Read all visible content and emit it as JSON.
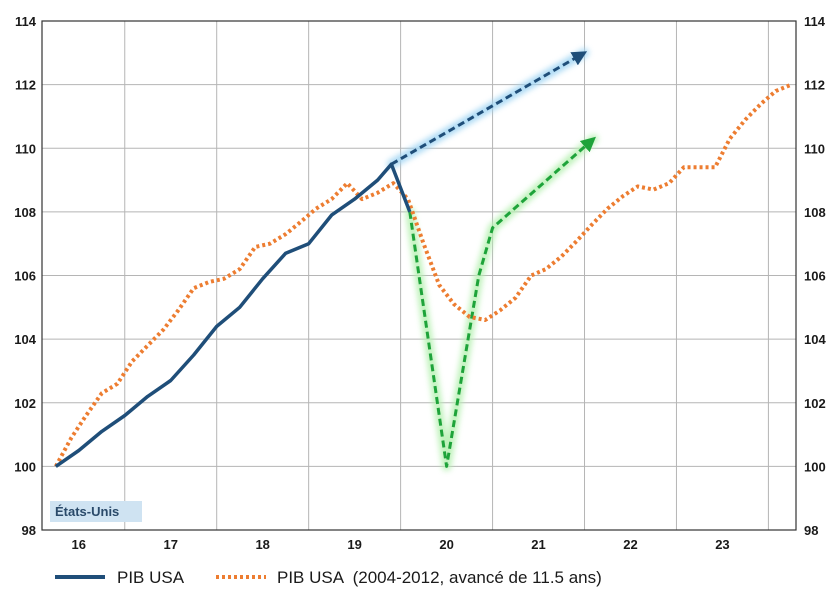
{
  "chart_data": {
    "type": "line",
    "title": "",
    "xlabel": "",
    "ylabel": "",
    "xlim": [
      15.6,
      23.8
    ],
    "ylim": [
      98,
      114
    ],
    "x_ticks": [
      "16",
      "17",
      "18",
      "19",
      "20",
      "21",
      "22",
      "23"
    ],
    "x_tick_values": [
      16,
      17,
      18,
      19,
      20,
      21,
      22,
      23
    ],
    "y_ticks": [
      "98",
      "100",
      "102",
      "104",
      "106",
      "108",
      "110",
      "112",
      "114"
    ],
    "y_tick_values": [
      98,
      100,
      102,
      104,
      106,
      108,
      110,
      112,
      114
    ],
    "grid": true,
    "legend_position": "bottom",
    "region_label": "États-Unis",
    "legend": [
      {
        "label": "PIB USA",
        "series": "actual"
      },
      {
        "label": "PIB USA  (2004-2012, avancé de 11.5 ans)",
        "series": "shifted"
      }
    ],
    "series": [
      {
        "key": "actual",
        "style": "solid",
        "color": "#1f4e79",
        "x": [
          15.75,
          16.0,
          16.25,
          16.5,
          16.75,
          17.0,
          17.25,
          17.5,
          17.75,
          18.0,
          18.25,
          18.5,
          18.75,
          19.0,
          19.25,
          19.4,
          19.6
        ],
        "y": [
          100.0,
          100.5,
          101.1,
          101.6,
          102.2,
          102.7,
          103.5,
          104.4,
          105.0,
          105.9,
          106.7,
          107.0,
          107.9,
          108.4,
          109.0,
          109.5,
          108.0
        ]
      },
      {
        "key": "shifted",
        "style": "dotted",
        "color": "#ed7d31",
        "x": [
          15.75,
          15.92,
          16.08,
          16.25,
          16.42,
          16.58,
          16.75,
          16.92,
          17.08,
          17.25,
          17.42,
          17.58,
          17.75,
          17.92,
          18.08,
          18.25,
          18.42,
          18.58,
          18.75,
          18.92,
          19.08,
          19.25,
          19.42,
          19.58,
          19.75,
          19.92,
          20.08,
          20.25,
          20.42,
          20.58,
          20.75,
          20.92,
          21.08,
          21.25,
          21.42,
          21.58,
          21.75,
          21.92,
          22.08,
          22.25,
          22.42,
          22.58,
          22.75,
          22.92,
          23.08,
          23.25,
          23.42,
          23.58,
          23.75
        ],
        "y": [
          100.0,
          100.9,
          101.6,
          102.3,
          102.6,
          103.3,
          103.8,
          104.3,
          104.9,
          105.6,
          105.8,
          105.9,
          106.2,
          106.9,
          107.0,
          107.3,
          107.7,
          108.1,
          108.4,
          108.9,
          108.4,
          108.6,
          108.9,
          108.4,
          107.0,
          105.7,
          105.1,
          104.7,
          104.6,
          104.9,
          105.3,
          106.0,
          106.2,
          106.6,
          107.1,
          107.6,
          108.1,
          108.5,
          108.8,
          108.7,
          108.9,
          109.4,
          109.4,
          109.4,
          110.3,
          110.9,
          111.4,
          111.8,
          112.0
        ]
      },
      {
        "key": "scenario-trend",
        "style": "dashed",
        "color": "#1f4e79",
        "glow": "#9fd4f3",
        "x": [
          19.4,
          21.5
        ],
        "y": [
          109.5,
          113.0
        ]
      },
      {
        "key": "scenario-v",
        "style": "dashed",
        "color": "#1ea33a",
        "glow": "#b5f0b0",
        "x": [
          19.6,
          20.0,
          20.35,
          20.5,
          21.6
        ],
        "y": [
          108.0,
          100.0,
          106.0,
          107.5,
          110.3
        ]
      }
    ]
  }
}
